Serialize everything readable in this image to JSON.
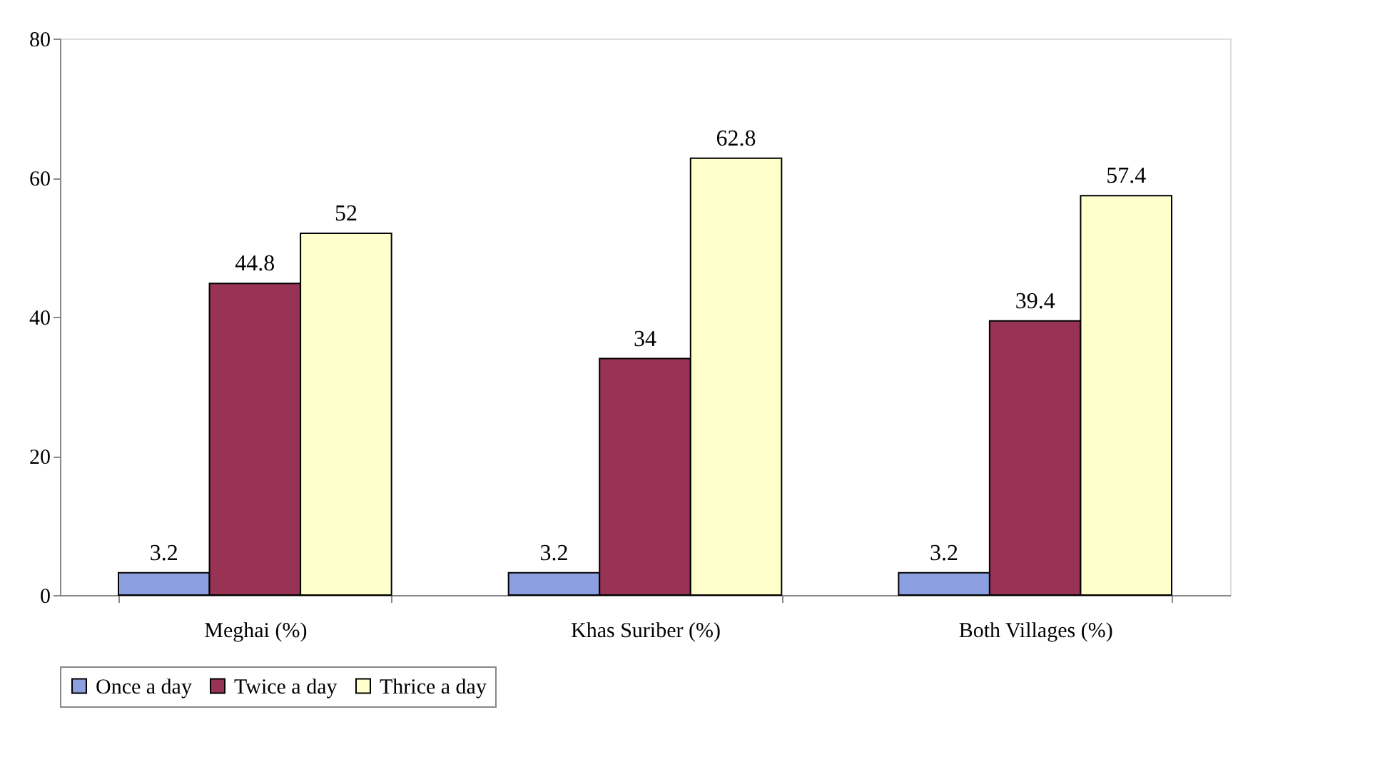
{
  "chart_data": {
    "type": "bar",
    "categories": [
      "Meghai (%)",
      "Khas Suriber (%)",
      "Both Villages (%)"
    ],
    "series": [
      {
        "name": "Once a day",
        "color": "#8c9fe0",
        "values": [
          3.2,
          3.2,
          3.2
        ]
      },
      {
        "name": "Twice a day",
        "color": "#993355",
        "values": [
          44.8,
          34,
          39.4
        ]
      },
      {
        "name": "Thrice a day",
        "color": "#ffffcc",
        "values": [
          52,
          62.8,
          57.4
        ]
      }
    ],
    "ylim": [
      0,
      80
    ],
    "yticks": [
      0,
      20,
      40,
      60,
      80
    ],
    "grid": false,
    "legend": "bottom",
    "data_labels": true
  }
}
